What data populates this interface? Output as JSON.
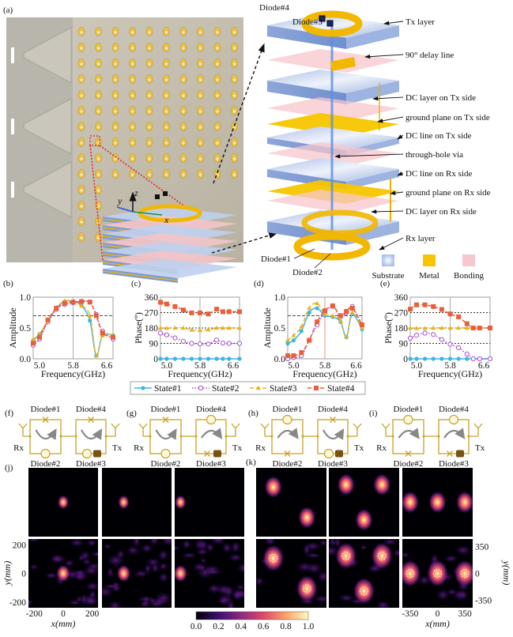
{
  "panel_labels": {
    "a": "(a)",
    "b": "(b)",
    "c": "(c)",
    "d": "(d)",
    "e": "(e)",
    "f": "(f)",
    "g": "(g)",
    "h": "(h)",
    "i": "(i)",
    "j": "(j)",
    "k": "(k)"
  },
  "stack": {
    "diode_labels": {
      "d1": "Diode#1",
      "d2": "Diode#2",
      "d3": "Diode#3",
      "d4": "Diode#4"
    },
    "layer_labels": [
      "Tx layer",
      "90° delay line",
      "DC layer on Tx side",
      "ground plane on Tx side",
      "DC line on Tx side",
      "through-hole via",
      "DC line on Rx side",
      "ground plane on Rx side",
      "DC layer on Rx side",
      "Rx layer"
    ],
    "material_legend": [
      {
        "label": "Substrate",
        "color": "#c9d9f2"
      },
      {
        "label": "Metal",
        "color": "#f7c600"
      },
      {
        "label": "Bonding",
        "color": "#f7c7cd"
      }
    ],
    "axes": {
      "x": "x",
      "y": "y",
      "z": "z"
    }
  },
  "legend": [
    {
      "name": "State#1",
      "color": "#3db4e2",
      "marker": "filled-circle",
      "line": "solid"
    },
    {
      "name": "State#2",
      "color": "#a94ed6",
      "marker": "open-circle",
      "line": "dotted"
    },
    {
      "name": "State#3",
      "color": "#e9b21e",
      "marker": "triangle",
      "line": "dashed"
    },
    {
      "name": "State#4",
      "color": "#e85f3a",
      "marker": "open-square",
      "line": "dashed"
    }
  ],
  "chart_data": [
    {
      "panel": "b",
      "type": "line",
      "xlabel": "Frequency(GHz)",
      "ylabel": "Amplitude",
      "xlim": [
        4.85,
        6.75
      ],
      "ylim": [
        0,
        1
      ],
      "xticks": [
        "5.0",
        "5.8",
        "6.6"
      ],
      "yticks": [
        "0.0",
        "0.5",
        "1.0"
      ],
      "reference_lines": {
        "y": [
          0.7
        ],
        "x": [
          5.8
        ]
      },
      "x": [
        4.85,
        5.0,
        5.2,
        5.4,
        5.6,
        5.8,
        6.0,
        6.2,
        6.35,
        6.5,
        6.75
      ],
      "series": [
        {
          "name": "State#1",
          "values": [
            0.3,
            0.4,
            0.6,
            0.82,
            0.93,
            0.93,
            0.86,
            0.62,
            0.05,
            0.38,
            0.38
          ]
        },
        {
          "name": "State#2",
          "values": [
            0.22,
            0.32,
            0.6,
            0.8,
            0.88,
            0.91,
            0.92,
            0.92,
            0.72,
            0.45,
            0.32
          ]
        },
        {
          "name": "State#3",
          "values": [
            0.32,
            0.4,
            0.62,
            0.83,
            0.94,
            0.93,
            0.86,
            0.7,
            0.05,
            0.38,
            0.38
          ]
        },
        {
          "name": "State#4",
          "values": [
            0.25,
            0.35,
            0.63,
            0.82,
            0.9,
            0.92,
            0.93,
            0.92,
            0.7,
            0.42,
            0.35
          ]
        }
      ]
    },
    {
      "panel": "c",
      "type": "line",
      "xlabel": "Frequency(GHz)",
      "ylabel": "Phase(º)",
      "xlim": [
        4.85,
        6.75
      ],
      "ylim": [
        0,
        360
      ],
      "xticks": [
        "5.0",
        "5.8",
        "6.6"
      ],
      "yticks": [
        "0",
        "90",
        "180",
        "270",
        "360"
      ],
      "reference_lines": {
        "y": [
          90,
          180,
          270
        ],
        "x": [
          5.8
        ]
      },
      "x": [
        4.85,
        5.0,
        5.2,
        5.4,
        5.6,
        5.8,
        6.0,
        6.2,
        6.35,
        6.5,
        6.75
      ],
      "series": [
        {
          "name": "State#1",
          "values": [
            0,
            0,
            0,
            0,
            0,
            0,
            0,
            0,
            0,
            0,
            0
          ]
        },
        {
          "name": "State#2",
          "values": [
            150,
            140,
            122,
            102,
            90,
            87,
            86,
            110,
            92,
            90,
            90
          ]
        },
        {
          "name": "State#3",
          "values": [
            180,
            179,
            180,
            180,
            168,
            166,
            170,
            180,
            180,
            180,
            180
          ]
        },
        {
          "name": "State#4",
          "values": [
            330,
            320,
            305,
            285,
            268,
            268,
            262,
            290,
            275,
            275,
            275
          ]
        }
      ]
    },
    {
      "panel": "d",
      "type": "line",
      "xlabel": "Frequency(GHz)",
      "ylabel": "Amplitude",
      "xlim": [
        4.85,
        6.75
      ],
      "ylim": [
        0,
        1
      ],
      "xticks": [
        "5.0",
        "5.8",
        "6.6"
      ],
      "yticks": [
        "0.0",
        "0.5",
        "1.0"
      ],
      "reference_lines": {
        "y": [
          0.7
        ],
        "x": [
          5.8
        ]
      },
      "x": [
        4.85,
        5.0,
        5.2,
        5.4,
        5.6,
        5.8,
        6.0,
        6.2,
        6.35,
        6.5,
        6.75
      ],
      "series": [
        {
          "name": "State#1",
          "values": [
            0.25,
            0.3,
            0.45,
            0.75,
            0.82,
            0.7,
            0.68,
            0.6,
            0.35,
            0.72,
            0.48
          ]
        },
        {
          "name": "State#2",
          "values": [
            0.0,
            0.02,
            0.05,
            0.3,
            0.55,
            0.75,
            0.85,
            0.68,
            0.75,
            0.85,
            0.55
          ]
        },
        {
          "name": "State#3",
          "values": [
            0.3,
            0.38,
            0.52,
            0.82,
            0.9,
            0.72,
            0.7,
            0.62,
            0.36,
            0.75,
            0.5
          ]
        },
        {
          "name": "State#4",
          "values": [
            0.05,
            0.05,
            0.1,
            0.3,
            0.6,
            0.78,
            0.86,
            0.7,
            0.77,
            0.82,
            0.55
          ]
        }
      ]
    },
    {
      "panel": "e",
      "type": "line",
      "xlabel": "Frequency(GHz)",
      "ylabel": "Phase(º)",
      "xlim": [
        4.85,
        6.75
      ],
      "ylim": [
        0,
        360
      ],
      "xticks": [
        "5.0",
        "5.8",
        "6.6"
      ],
      "yticks": [
        "0",
        "90",
        "180",
        "270",
        "360"
      ],
      "reference_lines": {
        "y": [
          90,
          180,
          270
        ],
        "x": [
          5.8
        ]
      },
      "x": [
        4.85,
        5.0,
        5.2,
        5.4,
        5.6,
        5.8,
        6.0,
        6.2,
        6.35,
        6.5,
        6.75
      ],
      "series": [
        {
          "name": "State#1",
          "values": [
            0,
            0,
            0,
            0,
            0,
            0,
            0,
            0,
            0,
            0,
            0
          ]
        },
        {
          "name": "State#2",
          "values": [
            120,
            138,
            150,
            142,
            112,
            85,
            65,
            28,
            0,
            0,
            0
          ]
        },
        {
          "name": "State#3",
          "values": [
            180,
            178,
            178,
            180,
            180,
            180,
            180,
            180,
            180,
            180,
            180
          ]
        },
        {
          "name": "State#4",
          "values": [
            290,
            315,
            315,
            305,
            288,
            262,
            245,
            205,
            180,
            180,
            180
          ]
        }
      ]
    }
  ],
  "circuits": [
    {
      "panel": "f",
      "d1": "cross",
      "d2": "circle",
      "d4": "cross",
      "d3": "circle"
    },
    {
      "panel": "g",
      "d1": "cross",
      "d2": "circle",
      "d4": "circle",
      "d3": "cross"
    },
    {
      "panel": "h",
      "d1": "circle",
      "d2": "cross",
      "d4": "cross",
      "d3": "circle"
    },
    {
      "panel": "i",
      "d1": "circle",
      "d2": "cross",
      "d4": "circle",
      "d3": "cross"
    }
  ],
  "circuit_labels": {
    "rx": "Rx",
    "tx": "Tx",
    "d1": "Diode#1",
    "d2": "Diode#2",
    "d3": "Diode#3",
    "d4": "Diode#4"
  },
  "fields": {
    "j": {
      "xlabel": "x(mm)",
      "ylabel": "y(mm)",
      "xticks": [
        "-200",
        "0",
        "200"
      ],
      "yticks": [
        "200",
        "0",
        "-200"
      ],
      "range_mm": 240,
      "panels": [
        {
          "foci": [
            [
              0,
              0
            ]
          ]
        },
        {
          "foci": [
            [
              -90,
              0
            ]
          ]
        },
        {
          "foci": [
            [
              -200,
              0
            ]
          ]
        }
      ]
    },
    "k": {
      "xlabel": "x(mm)",
      "ylabel": "y(mm)",
      "xticks": [
        "-350",
        "0",
        "350"
      ],
      "yticks": [
        "350",
        "0",
        "-350"
      ],
      "range_mm": 450,
      "panels": [
        {
          "foci": [
            [
              -230,
              200
            ],
            [
              200,
              -200
            ]
          ]
        },
        {
          "foci": [
            [
              -230,
              230
            ],
            [
              230,
              230
            ],
            [
              0,
              -230
            ]
          ]
        },
        {
          "foci": [
            [
              -350,
              0
            ],
            [
              0,
              0
            ],
            [
              350,
              0
            ]
          ]
        }
      ]
    }
  },
  "colorbar": {
    "ticks": [
      "0.0",
      "0.2",
      "0.4",
      "0.6",
      "0.8",
      "1.0"
    ],
    "colormap": [
      "#000004",
      "#3b0f70",
      "#8c2981",
      "#de4968",
      "#fe9f6d",
      "#fcfdbf"
    ]
  }
}
